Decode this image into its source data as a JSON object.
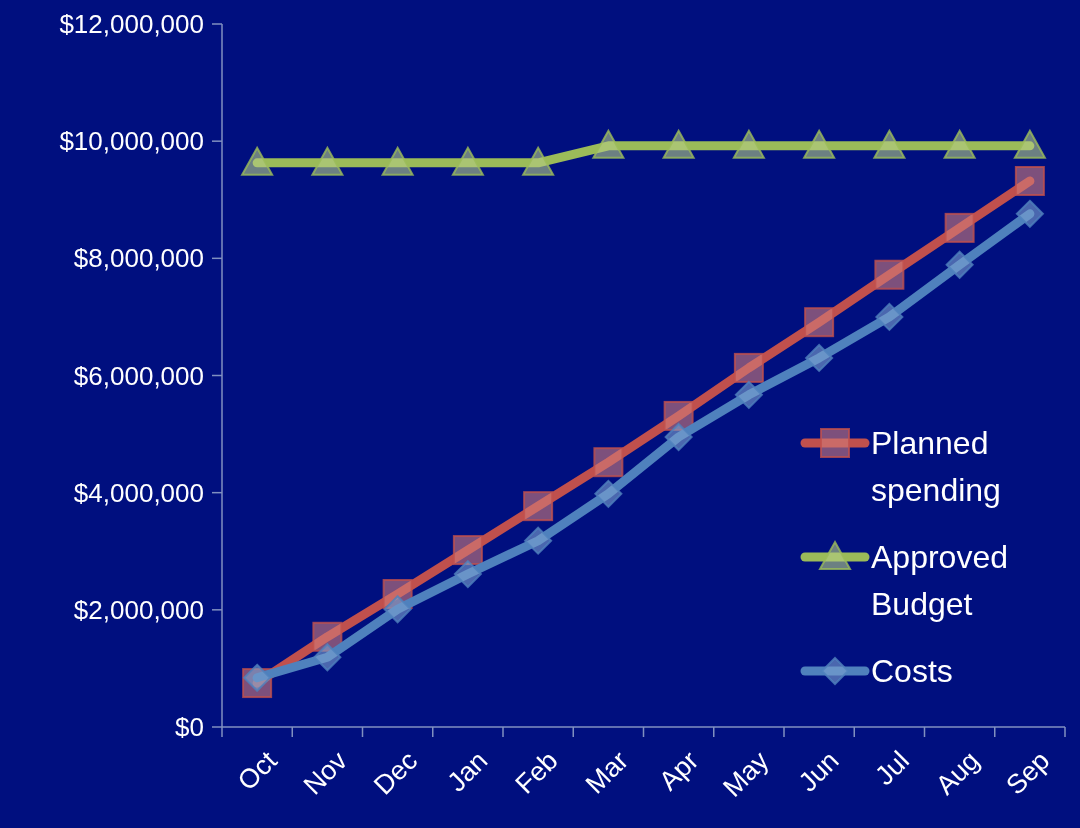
{
  "chart_data": {
    "type": "line",
    "categories": [
      "Oct",
      "Nov",
      "Dec",
      "Jan",
      "Feb",
      "Mar",
      "Apr",
      "May",
      "Jun",
      "Jul",
      "Aug",
      "Sep"
    ],
    "series": [
      {
        "name": "Planned spending",
        "color": "#c0504d",
        "marker": "square",
        "values": [
          750000,
          1540000,
          2270000,
          3020000,
          3770000,
          4520000,
          5310000,
          6130000,
          6910000,
          7720000,
          8520000,
          9320000
        ]
      },
      {
        "name": "Approved Budget",
        "color": "#9bbb59",
        "marker": "triangle",
        "values": [
          9630000,
          9630000,
          9630000,
          9630000,
          9630000,
          9920000,
          9920000,
          9920000,
          9920000,
          9920000,
          9920000,
          9920000
        ]
      },
      {
        "name": "Costs",
        "color": "#4f81bd",
        "marker": "diamond",
        "values": [
          840000,
          1190000,
          2010000,
          2610000,
          3180000,
          3980000,
          4950000,
          5670000,
          6300000,
          7000000,
          7890000,
          8760000
        ]
      }
    ],
    "ylim": [
      0,
      12000000
    ],
    "yticks": [
      {
        "value": 0,
        "label": "$0"
      },
      {
        "value": 2000000,
        "label": "$2,000,000"
      },
      {
        "value": 4000000,
        "label": "$4,000,000"
      },
      {
        "value": 6000000,
        "label": "$6,000,000"
      },
      {
        "value": 8000000,
        "label": "$8,000,000"
      },
      {
        "value": 10000000,
        "label": "$10,000,000"
      },
      {
        "value": 12000000,
        "label": "$12,000,000"
      }
    ],
    "grid": false,
    "legend": "right",
    "line_style": "solid"
  }
}
